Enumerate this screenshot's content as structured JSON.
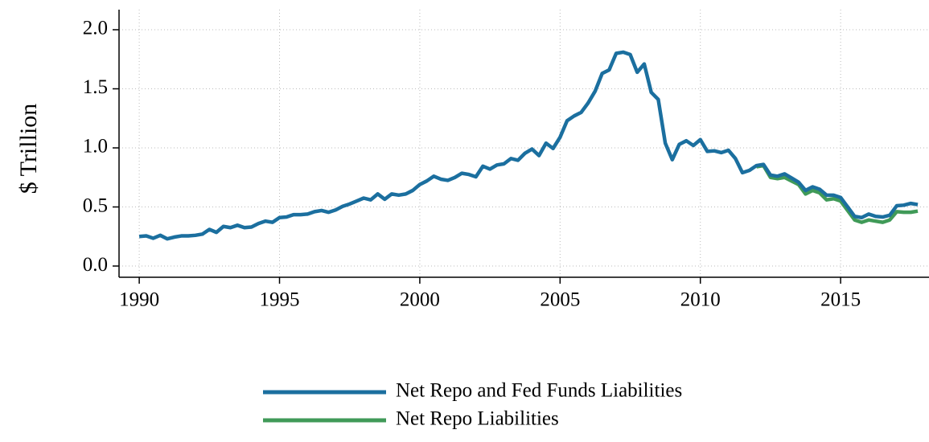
{
  "chart_data": {
    "type": "line",
    "y_label": "$ Trillion",
    "x": [
      1990,
      1990.25,
      1990.5,
      1990.75,
      1991,
      1991.25,
      1991.5,
      1991.75,
      1992,
      1992.25,
      1992.5,
      1992.75,
      1993,
      1993.25,
      1993.5,
      1993.75,
      1994,
      1994.25,
      1994.5,
      1994.75,
      1995,
      1995.25,
      1995.5,
      1995.75,
      1996,
      1996.25,
      1996.5,
      1996.75,
      1997,
      1997.25,
      1997.5,
      1997.75,
      1998,
      1998.25,
      1998.5,
      1998.75,
      1999,
      1999.25,
      1999.5,
      1999.75,
      2000,
      2000.25,
      2000.5,
      2000.75,
      2001,
      2001.25,
      2001.5,
      2001.75,
      2002,
      2002.25,
      2002.5,
      2002.75,
      2003,
      2003.25,
      2003.5,
      2003.75,
      2004,
      2004.25,
      2004.5,
      2004.75,
      2005,
      2005.25,
      2005.5,
      2005.75,
      2006,
      2006.25,
      2006.5,
      2006.75,
      2007,
      2007.25,
      2007.5,
      2007.75,
      2008,
      2008.25,
      2008.5,
      2008.75,
      2009,
      2009.25,
      2009.5,
      2009.75,
      2010,
      2010.25,
      2010.5,
      2010.75,
      2011,
      2011.25,
      2011.5,
      2011.75,
      2012,
      2012.25,
      2012.5,
      2012.75,
      2013,
      2013.25,
      2013.5,
      2013.75,
      2014,
      2014.25,
      2014.5,
      2014.75,
      2015,
      2015.25,
      2015.5,
      2015.75,
      2016,
      2016.25,
      2016.5,
      2016.75,
      2017,
      2017.25,
      2017.5,
      2017.75
    ],
    "series": [
      {
        "name": "Net Repo and Fed Funds Liabilities",
        "color": "#1b6f9f",
        "values": [
          0.25,
          0.255,
          0.235,
          0.26,
          0.23,
          0.245,
          0.255,
          0.255,
          0.26,
          0.27,
          0.31,
          0.285,
          0.335,
          0.325,
          0.345,
          0.325,
          0.33,
          0.36,
          0.38,
          0.37,
          0.41,
          0.415,
          0.435,
          0.435,
          0.44,
          0.46,
          0.47,
          0.455,
          0.475,
          0.505,
          0.525,
          0.55,
          0.575,
          0.56,
          0.61,
          0.565,
          0.61,
          0.6,
          0.61,
          0.64,
          0.69,
          0.72,
          0.76,
          0.735,
          0.725,
          0.75,
          0.785,
          0.775,
          0.755,
          0.845,
          0.82,
          0.855,
          0.865,
          0.91,
          0.895,
          0.955,
          0.99,
          0.935,
          1.04,
          0.995,
          1.09,
          1.23,
          1.27,
          1.3,
          1.38,
          1.48,
          1.63,
          1.66,
          1.8,
          1.81,
          1.79,
          1.64,
          1.71,
          1.47,
          1.41,
          1.04,
          0.9,
          1.03,
          1.06,
          1.02,
          1.07,
          0.97,
          0.975,
          0.96,
          0.98,
          0.91,
          0.79,
          0.81,
          0.85,
          0.86,
          0.77,
          0.76,
          0.78,
          0.745,
          0.71,
          0.64,
          0.67,
          0.65,
          0.6,
          0.6,
          0.58,
          0.5,
          0.42,
          0.41,
          0.44,
          0.42,
          0.415,
          0.43,
          0.51,
          0.515,
          0.53,
          0.52
        ]
      },
      {
        "name": "Net Repo Liabilities",
        "color": "#409a58",
        "values": [
          null,
          null,
          null,
          null,
          null,
          null,
          null,
          null,
          null,
          null,
          null,
          null,
          null,
          null,
          null,
          null,
          null,
          null,
          null,
          null,
          null,
          null,
          null,
          null,
          null,
          null,
          null,
          null,
          null,
          null,
          null,
          null,
          null,
          null,
          null,
          null,
          null,
          null,
          null,
          null,
          null,
          null,
          null,
          null,
          null,
          null,
          null,
          null,
          null,
          null,
          null,
          null,
          null,
          null,
          null,
          null,
          null,
          null,
          null,
          null,
          null,
          null,
          null,
          null,
          null,
          null,
          null,
          null,
          null,
          null,
          null,
          null,
          null,
          null,
          null,
          null,
          null,
          null,
          null,
          null,
          null,
          null,
          null,
          null,
          null,
          null,
          null,
          null,
          0.84,
          0.85,
          0.75,
          0.74,
          0.75,
          0.72,
          0.69,
          0.61,
          0.64,
          0.62,
          0.56,
          0.57,
          0.55,
          0.47,
          0.39,
          0.37,
          0.39,
          0.38,
          0.37,
          0.39,
          0.46,
          0.455,
          0.455,
          0.465
        ]
      }
    ],
    "xlim": [
      1989.28,
      2018.15
    ],
    "xticks": [
      1990,
      1995,
      2000,
      2005,
      2010,
      2015
    ],
    "ylim": [
      -0.095,
      2.17
    ],
    "yticks": [
      {
        "value": 0,
        "label": "0.0"
      },
      0.5,
      {
        "value": 1,
        "label": "1.0"
      },
      1.5,
      {
        "value": 2,
        "label": "2.0"
      }
    ],
    "grid": true
  }
}
